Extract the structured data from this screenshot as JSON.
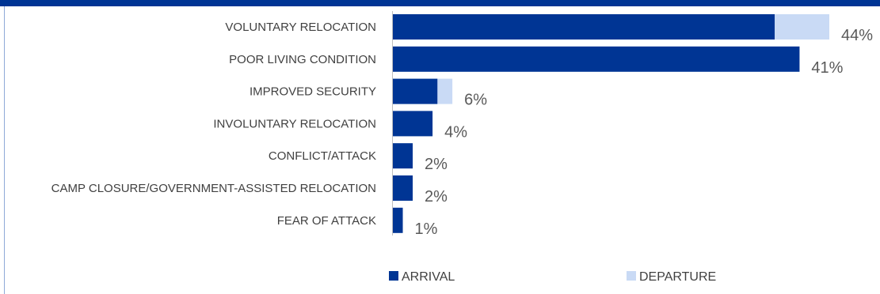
{
  "chart_data": {
    "type": "bar",
    "orientation": "horizontal",
    "stacked": true,
    "categories": [
      "VOLUNTARY RELOCATION",
      "POOR LIVING CONDITION",
      "IMPROVED SECURITY",
      "INVOLUNTARY RELOCATION",
      "CONFLICT/ATTACK",
      "CAMP CLOSURE/GOVERNMENT-ASSISTED RELOCATION",
      "FEAR OF ATTACK"
    ],
    "series": [
      {
        "name": "ARRIVAL",
        "color": "#003594",
        "values": [
          38.5,
          41,
          4.5,
          4,
          2,
          2,
          1
        ]
      },
      {
        "name": "DEPARTURE",
        "color": "#c9daf5",
        "values": [
          5.5,
          0,
          1.5,
          0,
          0,
          0,
          0
        ]
      }
    ],
    "data_labels": [
      "44%",
      "41%",
      "6%",
      "4%",
      "2%",
      "2%",
      "1%"
    ],
    "xlim": [
      0,
      44
    ],
    "title": "",
    "xlabel": "",
    "ylabel": "",
    "grid": false,
    "legend_position": "bottom"
  }
}
